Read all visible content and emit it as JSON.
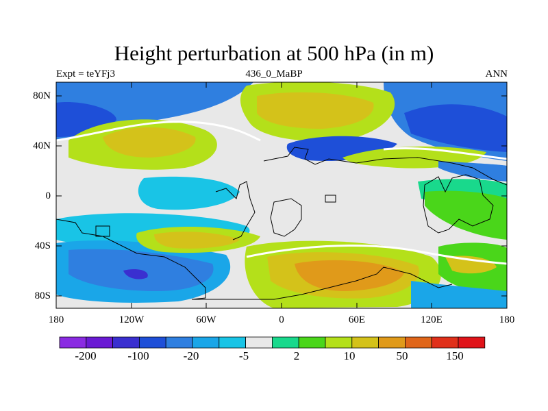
{
  "title": "Height perturbation at 500 hPa (in m)",
  "subtitle_left": "Expt = teYFj3",
  "subtitle_center": "436_0_MaBP",
  "subtitle_right": "ANN",
  "lat_labels": [
    "80N",
    "40N",
    "0",
    "40S",
    "80S"
  ],
  "lon_labels": [
    "180",
    "120W",
    "60W",
    "0",
    "60E",
    "120E",
    "180"
  ],
  "colorbar": {
    "colors": [
      "#8a2be2",
      "#6a1ad4",
      "#3a2fd0",
      "#1e4fd8",
      "#2f7fe0",
      "#1aa6e8",
      "#19c4e6",
      "#e8e8e8",
      "#19d98c",
      "#4ad61a",
      "#b4e01a",
      "#d4c21a",
      "#e09a1a",
      "#e0661a",
      "#e0301a",
      "#e0141a"
    ],
    "labels": [
      "-200",
      "-100",
      "-20",
      "-5",
      "2",
      "10",
      "50",
      "150"
    ]
  },
  "palette": {
    "neutral": "#e8e8e8",
    "pos_weak": "#19d98c",
    "pos_mid": "#4ad61a",
    "pos_strong": "#b4e01a",
    "pos_stronger": "#d4c21a",
    "pos_max": "#e09a1a",
    "neg_weak": "#19c4e6",
    "neg_mid": "#1aa6e8",
    "neg_strong": "#2f7fe0",
    "neg_stronger": "#1e4fd8",
    "neg_max": "#3a2fd0"
  }
}
